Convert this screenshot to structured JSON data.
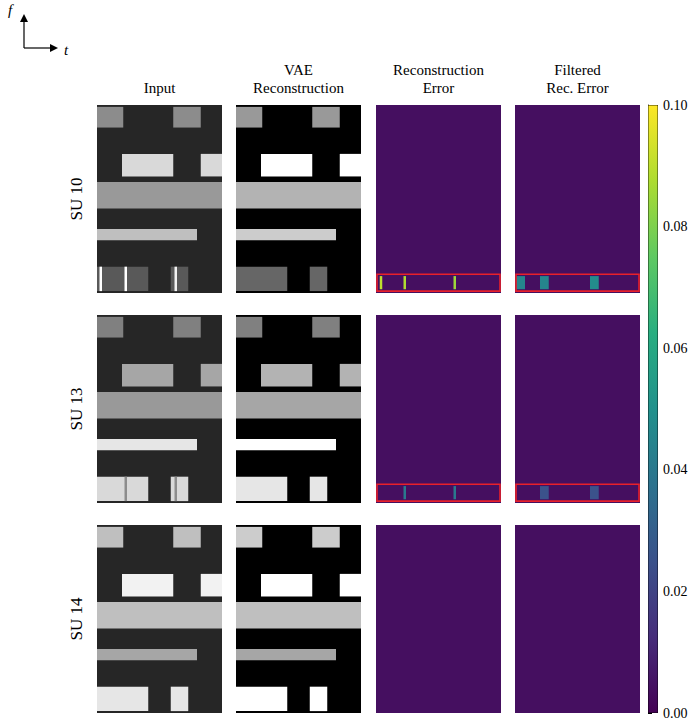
{
  "chart_data": {
    "type": "heatmap",
    "axis_labels": {
      "x": "t",
      "y": "f"
    },
    "columns": [
      "Input",
      "VAE Reconstruction",
      "Reconstruction Error",
      "Filtered Rec. Error"
    ],
    "xlim": [
      0,
      100
    ],
    "ylim": [
      0,
      100
    ],
    "tick_labels": false,
    "colorbar": {
      "lim": [
        0,
        0.1
      ],
      "ticks": [
        {
          "value": 0,
          "label": "0.00"
        },
        {
          "value": 0.02,
          "label": "0.02"
        },
        {
          "value": 0.04,
          "label": "0.04"
        },
        {
          "value": 0.06,
          "label": "0.06"
        },
        {
          "value": 0.08,
          "label": "0.08"
        },
        {
          "value": 0.1,
          "label": "0.10"
        }
      ]
    },
    "rows": [
      {
        "name": "SU 10",
        "input": {
          "background": 0.15,
          "rects": [
            [
              0,
              21,
              88,
              99,
              0.55
            ],
            [
              61,
              83,
              88,
              99,
              0.55
            ],
            [
              20,
              61,
              62,
              74,
              0.85
            ],
            [
              83,
              100,
              62,
              74,
              0.85
            ],
            [
              0,
              100,
              45,
              59,
              0.6
            ],
            [
              0,
              80,
              28,
              34,
              0.75
            ],
            [
              0,
              41,
              1,
              14,
              0.35
            ],
            [
              59,
              73,
              1,
              14,
              0.35
            ],
            [
              2,
              4,
              1,
              14,
              1.0
            ],
            [
              22,
              24,
              1,
              14,
              1.0
            ],
            [
              62,
              64,
              1,
              14,
              0.95
            ]
          ]
        },
        "reconstruction": {
          "background": 0.0,
          "rects": [
            [
              0,
              21,
              88,
              99,
              0.6
            ],
            [
              61,
              83,
              88,
              99,
              0.6
            ],
            [
              20,
              61,
              62,
              74,
              1.0
            ],
            [
              83,
              100,
              62,
              74,
              1.0
            ],
            [
              0,
              100,
              45,
              59,
              0.7
            ],
            [
              0,
              80,
              28,
              34,
              0.8
            ],
            [
              0,
              41,
              1,
              14,
              0.4
            ],
            [
              59,
              73,
              1,
              14,
              0.4
            ]
          ]
        },
        "error": {
          "background": 0.004,
          "rects": [
            [
              3,
              5,
              2,
              9,
              0.09
            ],
            [
              22,
              24,
              2,
              9,
              0.088
            ],
            [
              62,
              64,
              2,
              9,
              0.085
            ]
          ],
          "anomaly_box": {
            "t": [
              0,
              100
            ],
            "f": [
              1,
              10
            ]
          }
        },
        "filtered_error": {
          "background": 0.004,
          "rects": [
            [
              1,
              8,
              2,
              9,
              0.045
            ],
            [
              20,
              27,
              2,
              9,
              0.045
            ],
            [
              60,
              67,
              2,
              9,
              0.048
            ]
          ],
          "anomaly_box": {
            "t": [
              0,
              100
            ],
            "f": [
              1,
              10
            ]
          }
        }
      },
      {
        "name": "SU 13",
        "input": {
          "background": 0.15,
          "rects": [
            [
              0,
              21,
              88,
              99,
              0.5
            ],
            [
              61,
              83,
              88,
              99,
              0.5
            ],
            [
              20,
              61,
              62,
              74,
              0.65
            ],
            [
              83,
              100,
              62,
              74,
              0.65
            ],
            [
              0,
              100,
              45,
              59,
              0.6
            ],
            [
              0,
              80,
              28,
              34,
              0.9
            ],
            [
              0,
              41,
              1,
              14,
              0.85
            ],
            [
              59,
              73,
              1,
              14,
              0.85
            ],
            [
              22,
              24,
              1,
              14,
              0.55
            ],
            [
              62,
              64,
              1,
              14,
              0.55
            ]
          ]
        },
        "reconstruction": {
          "background": 0.0,
          "rects": [
            [
              0,
              21,
              88,
              99,
              0.5
            ],
            [
              61,
              83,
              88,
              99,
              0.5
            ],
            [
              20,
              61,
              62,
              74,
              0.7
            ],
            [
              83,
              100,
              62,
              74,
              0.7
            ],
            [
              0,
              100,
              45,
              59,
              0.65
            ],
            [
              0,
              80,
              28,
              34,
              1.0
            ],
            [
              0,
              41,
              1,
              14,
              0.9
            ],
            [
              59,
              73,
              1,
              14,
              0.9
            ]
          ]
        },
        "error": {
          "background": 0.004,
          "rects": [
            [
              22,
              24,
              2,
              9,
              0.04
            ],
            [
              62,
              64,
              2,
              9,
              0.04
            ]
          ],
          "anomaly_box": {
            "t": [
              0,
              100
            ],
            "f": [
              1,
              10
            ]
          }
        },
        "filtered_error": {
          "background": 0.004,
          "rects": [
            [
              20,
              27,
              2,
              9,
              0.025
            ],
            [
              60,
              67,
              2,
              9,
              0.025
            ]
          ],
          "anomaly_box": {
            "t": [
              0,
              100
            ],
            "f": [
              1,
              10
            ]
          }
        }
      },
      {
        "name": "SU 14",
        "input": {
          "background": 0.15,
          "rects": [
            [
              0,
              21,
              88,
              99,
              0.75
            ],
            [
              61,
              83,
              88,
              99,
              0.75
            ],
            [
              20,
              61,
              62,
              74,
              0.95
            ],
            [
              83,
              100,
              62,
              74,
              0.95
            ],
            [
              0,
              100,
              45,
              59,
              0.75
            ],
            [
              0,
              80,
              28,
              34,
              0.65
            ],
            [
              0,
              41,
              1,
              14,
              0.9
            ],
            [
              59,
              73,
              1,
              14,
              0.9
            ]
          ]
        },
        "reconstruction": {
          "background": 0.0,
          "rects": [
            [
              0,
              21,
              88,
              99,
              0.8
            ],
            [
              61,
              83,
              88,
              99,
              0.8
            ],
            [
              20,
              61,
              62,
              74,
              1.0
            ],
            [
              83,
              100,
              62,
              74,
              1.0
            ],
            [
              0,
              100,
              45,
              59,
              0.75
            ],
            [
              0,
              80,
              28,
              34,
              0.65
            ],
            [
              0,
              41,
              1,
              14,
              1.0
            ],
            [
              59,
              73,
              1,
              14,
              1.0
            ]
          ]
        },
        "error": {
          "background": 0.004,
          "rects": []
        },
        "filtered_error": {
          "background": 0.004,
          "rects": []
        }
      }
    ]
  }
}
